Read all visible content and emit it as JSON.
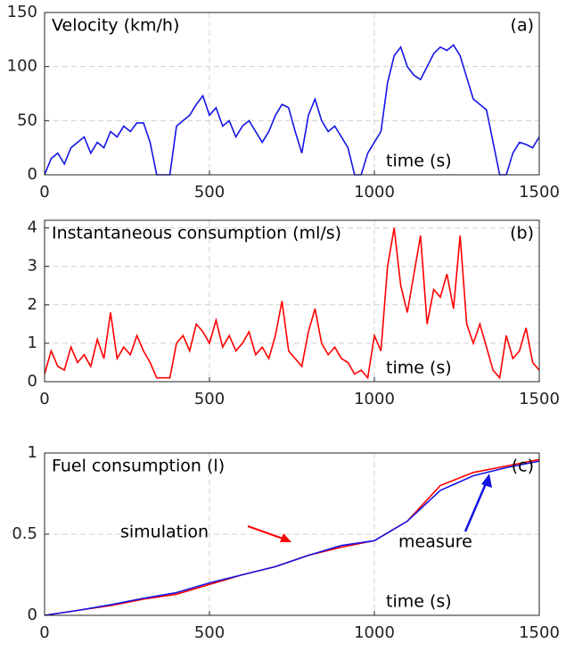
{
  "chart_data": [
    {
      "type": "line",
      "title": "Velocity (km/h)",
      "panel_label": "(a)",
      "xlabel": "time (s)",
      "x": [
        0,
        20,
        40,
        60,
        80,
        100,
        120,
        140,
        160,
        180,
        200,
        220,
        240,
        260,
        280,
        300,
        320,
        340,
        360,
        380,
        400,
        420,
        440,
        460,
        480,
        500,
        520,
        540,
        560,
        580,
        600,
        620,
        640,
        660,
        680,
        700,
        720,
        740,
        760,
        780,
        800,
        820,
        840,
        860,
        880,
        900,
        920,
        940,
        960,
        980,
        1000,
        1020,
        1040,
        1060,
        1080,
        1100,
        1120,
        1140,
        1160,
        1180,
        1200,
        1220,
        1240,
        1260,
        1280,
        1300,
        1320,
        1340,
        1360,
        1380,
        1400,
        1420,
        1440,
        1460,
        1480,
        1500
      ],
      "series": [
        {
          "color": "#1414e6",
          "values": [
            0,
            15,
            20,
            10,
            25,
            30,
            35,
            20,
            30,
            25,
            40,
            35,
            45,
            40,
            48,
            48,
            30,
            0,
            0,
            0,
            45,
            50,
            55,
            65,
            73,
            55,
            62,
            45,
            50,
            35,
            45,
            50,
            40,
            30,
            40,
            55,
            65,
            62,
            40,
            20,
            55,
            70,
            50,
            40,
            45,
            35,
            25,
            0,
            0,
            20,
            30,
            40,
            85,
            110,
            118,
            100,
            92,
            88,
            100,
            112,
            118,
            115,
            120,
            110,
            90,
            70,
            65,
            60,
            30,
            0,
            0,
            20,
            30,
            28,
            25,
            35
          ]
        }
      ],
      "xlim": [
        0,
        1500
      ],
      "xticks": [
        0,
        500,
        1000,
        1500
      ],
      "ylim": [
        0,
        150
      ],
      "yticks": [
        0,
        50,
        100,
        150
      ],
      "grid": true
    },
    {
      "type": "line",
      "title": "Instantaneous consumption (ml/s)",
      "panel_label": "(b)",
      "xlabel": "time (s)",
      "x": [
        0,
        20,
        40,
        60,
        80,
        100,
        120,
        140,
        160,
        180,
        200,
        220,
        240,
        260,
        280,
        300,
        320,
        340,
        360,
        380,
        400,
        420,
        440,
        460,
        480,
        500,
        520,
        540,
        560,
        580,
        600,
        620,
        640,
        660,
        680,
        700,
        720,
        740,
        760,
        780,
        800,
        820,
        840,
        860,
        880,
        900,
        920,
        940,
        960,
        980,
        1000,
        1020,
        1040,
        1060,
        1080,
        1100,
        1120,
        1140,
        1160,
        1180,
        1200,
        1220,
        1240,
        1260,
        1280,
        1300,
        1320,
        1340,
        1360,
        1380,
        1400,
        1420,
        1440,
        1460,
        1480,
        1500
      ],
      "series": [
        {
          "color": "#ff0000",
          "values": [
            0.2,
            0.8,
            0.4,
            0.3,
            0.9,
            0.5,
            0.7,
            0.4,
            1.1,
            0.6,
            1.8,
            0.6,
            0.9,
            0.7,
            1.2,
            0.8,
            0.5,
            0.1,
            0.1,
            0.1,
            1.0,
            1.2,
            0.8,
            1.5,
            1.3,
            1.0,
            1.6,
            0.9,
            1.2,
            0.8,
            1.0,
            1.3,
            0.7,
            0.9,
            0.6,
            1.2,
            2.1,
            0.8,
            0.6,
            0.4,
            1.3,
            1.9,
            1.0,
            0.7,
            0.9,
            0.6,
            0.5,
            0.2,
            0.3,
            0.1,
            1.2,
            0.8,
            3.0,
            4.0,
            2.5,
            1.8,
            2.8,
            3.8,
            1.5,
            2.4,
            2.2,
            2.8,
            1.9,
            3.8,
            1.5,
            1.0,
            1.5,
            0.9,
            0.3,
            0.1,
            1.2,
            0.6,
            0.8,
            1.4,
            0.5,
            0.3
          ]
        }
      ],
      "xlim": [
        0,
        1500
      ],
      "xticks": [
        0,
        500,
        1000,
        1500
      ],
      "ylim": [
        0,
        4.2
      ],
      "yticks": [
        0,
        1,
        2,
        3,
        4
      ],
      "grid": true
    },
    {
      "type": "line",
      "title": "Fuel consumption (l)",
      "panel_label": "(c)",
      "xlabel": "time (s)",
      "x": [
        0,
        100,
        200,
        300,
        400,
        500,
        600,
        700,
        800,
        900,
        1000,
        1100,
        1200,
        1300,
        1400,
        1500
      ],
      "series": [
        {
          "name": "simulation",
          "color": "#ff0000",
          "values": [
            0,
            0.03,
            0.06,
            0.1,
            0.13,
            0.19,
            0.25,
            0.3,
            0.37,
            0.42,
            0.46,
            0.58,
            0.8,
            0.88,
            0.92,
            0.96
          ]
        },
        {
          "name": "measure",
          "color": "#1414e6",
          "values": [
            0,
            0.03,
            0.065,
            0.105,
            0.14,
            0.2,
            0.25,
            0.3,
            0.37,
            0.43,
            0.46,
            0.58,
            0.77,
            0.86,
            0.91,
            0.95
          ]
        }
      ],
      "xlim": [
        0,
        1500
      ],
      "xticks": [
        0,
        500,
        1000,
        1500
      ],
      "ylim": [
        0,
        1
      ],
      "yticks": [
        0,
        0.5,
        1
      ],
      "grid": true
    }
  ]
}
